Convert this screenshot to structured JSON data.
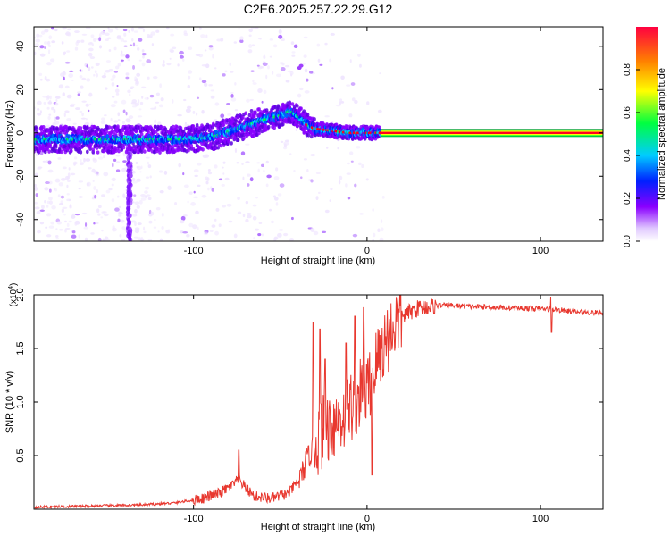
{
  "title": "C2E6.2025.257.22.29.G12",
  "chart_data": [
    {
      "type": "heatmap",
      "xlabel": "Height of straight line (km)",
      "ylabel": "Frequency (Hz)",
      "xlim": [
        -192,
        136
      ],
      "ylim": [
        -50,
        49
      ],
      "xticks": [
        -100,
        0,
        100
      ],
      "yticks": [
        -40,
        -20,
        0,
        20,
        40
      ],
      "ridge": {
        "x": [
          -192,
          -160,
          -130,
          -110,
          -90,
          -75,
          -60,
          -50,
          -45,
          -40,
          -35,
          -30,
          -20,
          -10,
          0,
          8,
          136
        ],
        "y": [
          -3,
          -3,
          -3,
          -3,
          -2,
          2,
          6,
          8,
          10,
          8,
          4,
          2,
          1,
          0,
          0,
          0,
          0
        ]
      },
      "colorbar": {
        "label": "Normalized spectral amplitude",
        "ticks": [
          "0.0",
          "0.2",
          "0.4",
          "0.6",
          "0.8"
        ],
        "tick_values": [
          0.0,
          0.2,
          0.4,
          0.6,
          0.8
        ],
        "range": [
          0,
          1
        ]
      },
      "colors": [
        "#f0e6ff",
        "#8a00ff",
        "#0020ff",
        "#00ccff",
        "#00ff40",
        "#ffff00",
        "#ff8000",
        "#ff0020"
      ]
    },
    {
      "type": "line",
      "xlabel": "Height of straight line (km)",
      "ylabel": "SNR (10 * v/v)",
      "scale_label": "(x10^4)",
      "scale_text": "(x10",
      "scale_exp": "4",
      "xlim": [
        -192,
        136
      ],
      "ylim": [
        0,
        2.0
      ],
      "xticks": [
        -100,
        0,
        100
      ],
      "yticks": [
        0.5,
        1.0,
        1.5,
        2.0
      ],
      "ytick_labels": [
        "0.5",
        "1.0",
        "1.5",
        "2.0"
      ],
      "series_color": "#e8382f",
      "trend": {
        "x": [
          -192,
          -130,
          -110,
          -95,
          -85,
          -78,
          -74,
          -70,
          -65,
          -55,
          -45,
          -38,
          -35,
          -30,
          -25,
          -20,
          -15,
          -10,
          -5,
          0,
          5,
          10,
          15,
          20,
          30,
          40,
          50,
          60,
          80,
          100,
          110,
          120,
          136
        ],
        "y": [
          0.02,
          0.04,
          0.06,
          0.1,
          0.15,
          0.22,
          0.28,
          0.2,
          0.12,
          0.1,
          0.15,
          0.3,
          0.45,
          0.6,
          0.75,
          0.8,
          0.85,
          0.95,
          1.05,
          1.1,
          1.35,
          1.55,
          1.7,
          1.8,
          1.88,
          1.9,
          1.9,
          1.89,
          1.88,
          1.87,
          1.86,
          1.84,
          1.83
        ]
      },
      "spikes": [
        {
          "x": -74,
          "y": 0.55
        },
        {
          "x": -31,
          "y": 1.74
        },
        {
          "x": -27,
          "y": 1.68
        },
        {
          "x": -24,
          "y": 1.4
        },
        {
          "x": -12,
          "y": 1.55
        },
        {
          "x": -7,
          "y": 1.8
        },
        {
          "x": -2,
          "y": 1.88
        },
        {
          "x": 3,
          "y": 0.32
        },
        {
          "x": 106,
          "y": 1.98
        },
        {
          "x": 106.5,
          "y": 1.65
        }
      ]
    }
  ]
}
